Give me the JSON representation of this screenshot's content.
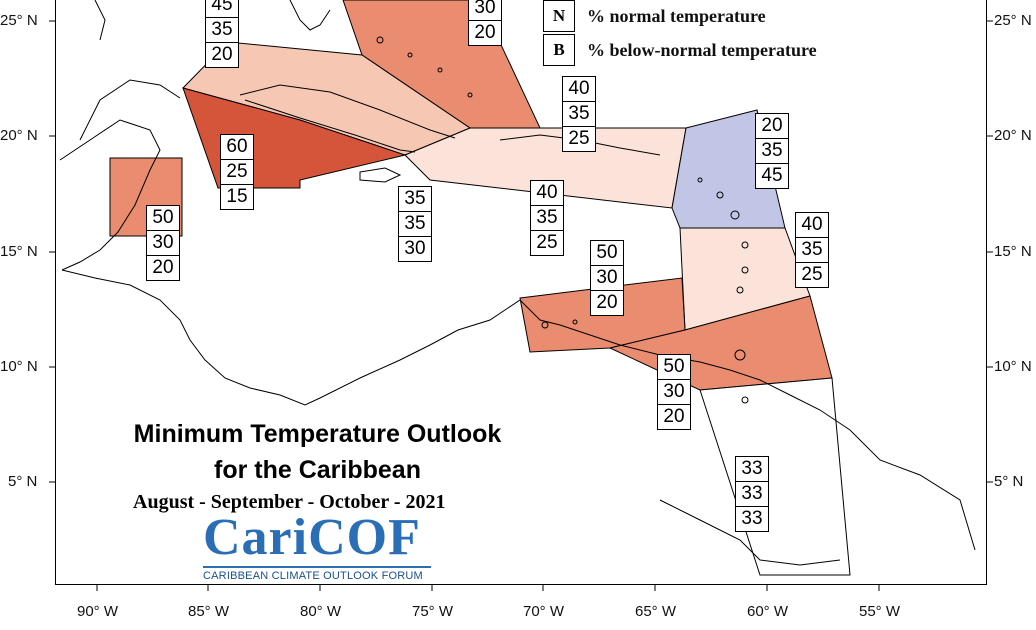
{
  "title": {
    "line1": "Minimum Temperature Outlook",
    "line2": "for the Caribbean"
  },
  "period": "August - September - October - 2021",
  "logo": {
    "name": "CariCOF",
    "tagline": "CARIBBEAN CLIMATE OUTLOOK FORUM"
  },
  "legend": [
    {
      "key": "N",
      "label": "% normal temperature"
    },
    {
      "key": "B",
      "label": "% below-normal temperature"
    }
  ],
  "axes": {
    "lon_labels": [
      "90° W",
      "85° W",
      "80° W",
      "75° W",
      "70° W",
      "65° W",
      "60° W",
      "55° W"
    ],
    "lat_labels": [
      "25° N",
      "20° N",
      "15° N",
      "10° N",
      "5° N"
    ]
  },
  "colors": {
    "above_light": "#fbe3da",
    "above_medium": "#f6c8b4",
    "above_strong": "#e98c70",
    "above_very_strong": "#d5553b",
    "below": "#c2c6e6",
    "climatology": "#ffffff"
  },
  "boxes": [
    {
      "id": "bahamas-west",
      "values": [
        "45",
        "35",
        "20"
      ]
    },
    {
      "id": "bahamas-east",
      "values": [
        "30",
        "20"
      ]
    },
    {
      "id": "cuba-north",
      "values": [
        "40",
        "35",
        "25"
      ]
    },
    {
      "id": "cuba-south",
      "values": [
        "60",
        "25",
        "15"
      ]
    },
    {
      "id": "belize",
      "values": [
        "50",
        "30",
        "20"
      ]
    },
    {
      "id": "jamaica",
      "values": [
        "35",
        "35",
        "30"
      ]
    },
    {
      "id": "hispaniola",
      "values": [
        "40",
        "35",
        "25"
      ]
    },
    {
      "id": "leeward",
      "values": [
        "20",
        "35",
        "45"
      ]
    },
    {
      "id": "windward",
      "values": [
        "40",
        "35",
        "25"
      ]
    },
    {
      "id": "abc-islands",
      "values": [
        "50",
        "30",
        "20"
      ]
    },
    {
      "id": "trinidad",
      "values": [
        "50",
        "30",
        "20"
      ]
    },
    {
      "id": "guianas",
      "values": [
        "33",
        "33",
        "33"
      ]
    }
  ]
}
